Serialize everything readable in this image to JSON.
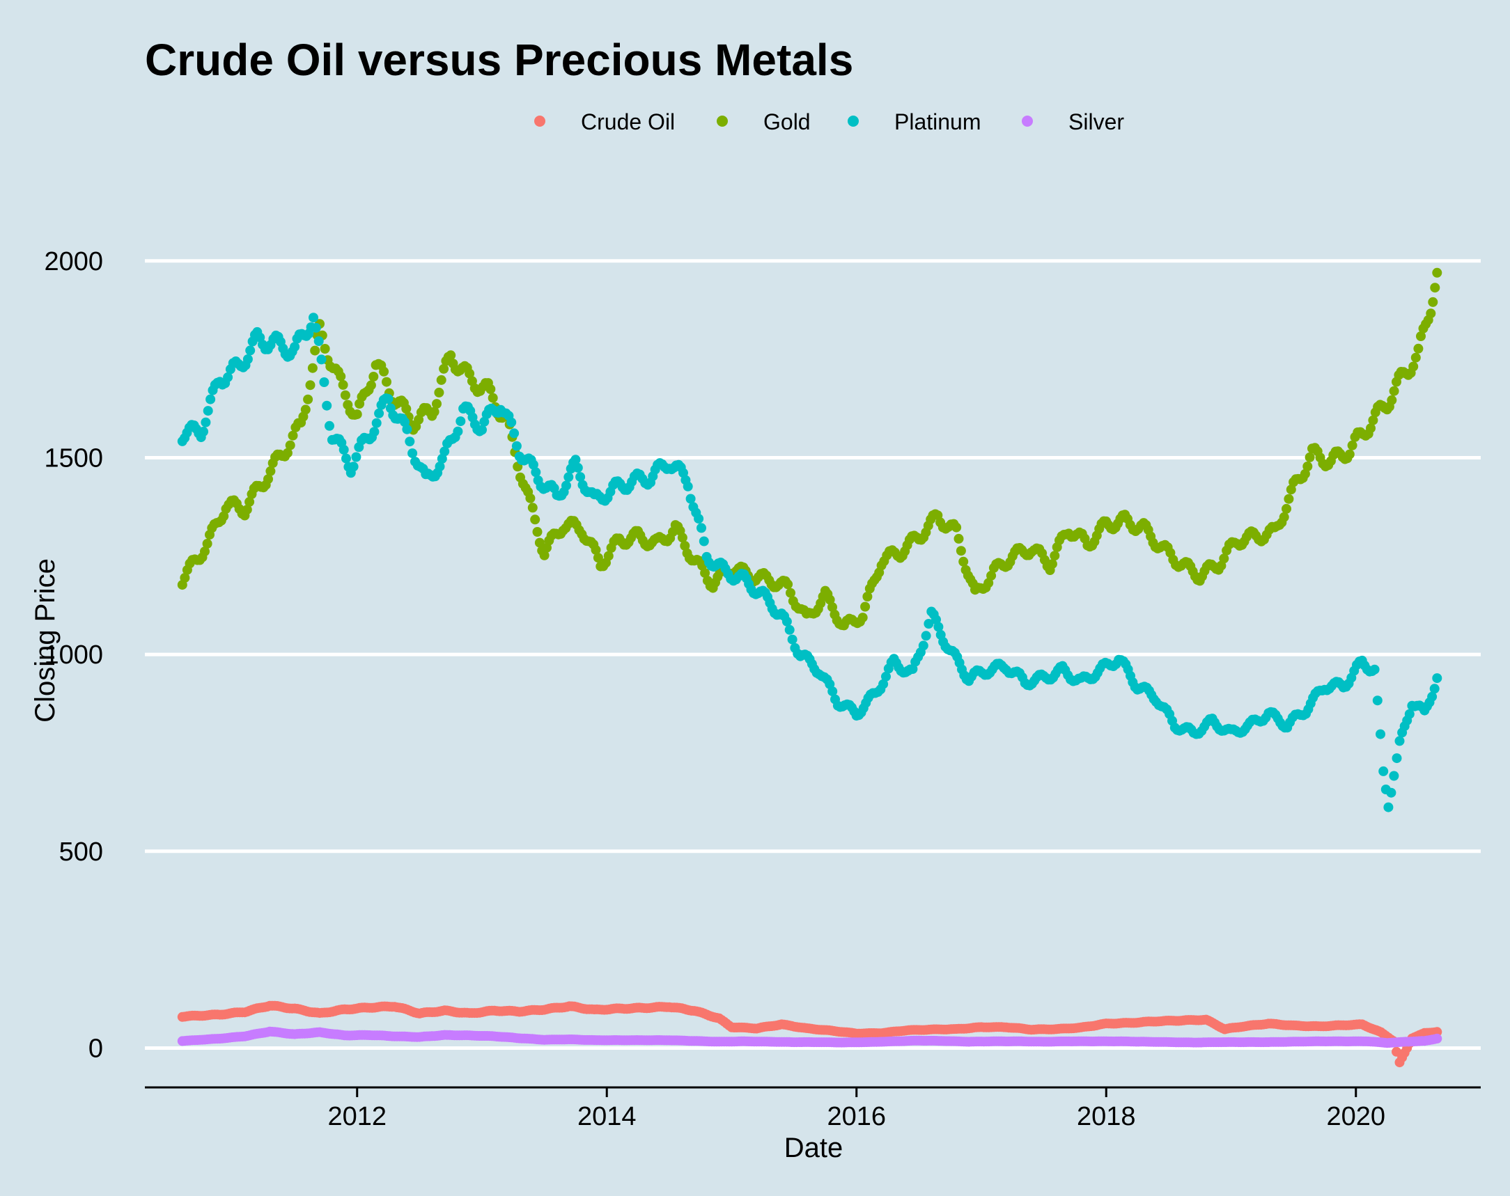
{
  "chart_data": {
    "type": "scatter",
    "title": "Crude Oil versus Precious Metals",
    "xlabel": "Date",
    "ylabel": "Closing Price",
    "xlim": [
      2010.3,
      2021.0
    ],
    "ylim": [
      -100,
      2150
    ],
    "x_ticks": [
      2012,
      2014,
      2016,
      2018,
      2020
    ],
    "x_tick_labels": [
      "2012",
      "2014",
      "2016",
      "2018",
      "2020"
    ],
    "y_ticks": [
      0,
      500,
      1000,
      1500,
      2000
    ],
    "y_tick_labels": [
      "0",
      "500",
      "1000",
      "1500",
      "2000"
    ],
    "grid": "horizontal",
    "legend": {
      "position": "top",
      "entries": [
        "Crude Oil",
        "Gold",
        "Platinum",
        "Silver"
      ]
    },
    "series": [
      {
        "name": "Crude Oil",
        "color": "#F8766D",
        "points": [
          [
            2010.6,
            80
          ],
          [
            2010.9,
            85
          ],
          [
            2011.1,
            92
          ],
          [
            2011.3,
            108
          ],
          [
            2011.5,
            100
          ],
          [
            2011.7,
            88
          ],
          [
            2011.9,
            98
          ],
          [
            2012.1,
            103
          ],
          [
            2012.3,
            106
          ],
          [
            2012.5,
            88
          ],
          [
            2012.7,
            95
          ],
          [
            2012.9,
            88
          ],
          [
            2013.1,
            95
          ],
          [
            2013.3,
            93
          ],
          [
            2013.5,
            98
          ],
          [
            2013.7,
            106
          ],
          [
            2013.9,
            97
          ],
          [
            2014.1,
            100
          ],
          [
            2014.3,
            102
          ],
          [
            2014.5,
            105
          ],
          [
            2014.7,
            95
          ],
          [
            2014.9,
            75
          ],
          [
            2015.0,
            53
          ],
          [
            2015.2,
            50
          ],
          [
            2015.4,
            60
          ],
          [
            2015.6,
            50
          ],
          [
            2015.8,
            44
          ],
          [
            2016.0,
            37
          ],
          [
            2016.2,
            38
          ],
          [
            2016.4,
            45
          ],
          [
            2016.6,
            47
          ],
          [
            2016.8,
            48
          ],
          [
            2017.0,
            53
          ],
          [
            2017.2,
            53
          ],
          [
            2017.4,
            47
          ],
          [
            2017.6,
            48
          ],
          [
            2017.8,
            52
          ],
          [
            2018.0,
            62
          ],
          [
            2018.2,
            64
          ],
          [
            2018.4,
            68
          ],
          [
            2018.6,
            70
          ],
          [
            2018.8,
            72
          ],
          [
            2018.95,
            48
          ],
          [
            2019.1,
            55
          ],
          [
            2019.3,
            62
          ],
          [
            2019.5,
            57
          ],
          [
            2019.7,
            55
          ],
          [
            2019.9,
            58
          ],
          [
            2020.05,
            60
          ],
          [
            2020.2,
            40
          ],
          [
            2020.3,
            18
          ],
          [
            2020.35,
            -37
          ],
          [
            2020.45,
            25
          ],
          [
            2020.55,
            38
          ],
          [
            2020.65,
            41
          ]
        ]
      },
      {
        "name": "Gold",
        "color": "#7CAE00",
        "points": [
          [
            2010.6,
            1190
          ],
          [
            2010.8,
            1280
          ],
          [
            2010.95,
            1380
          ],
          [
            2011.1,
            1370
          ],
          [
            2011.25,
            1440
          ],
          [
            2011.4,
            1510
          ],
          [
            2011.55,
            1580
          ],
          [
            2011.7,
            1820
          ],
          [
            2011.85,
            1700
          ],
          [
            2012.0,
            1600
          ],
          [
            2012.15,
            1740
          ],
          [
            2012.3,
            1650
          ],
          [
            2012.45,
            1590
          ],
          [
            2012.6,
            1620
          ],
          [
            2012.75,
            1760
          ],
          [
            2012.9,
            1700
          ],
          [
            2013.05,
            1670
          ],
          [
            2013.2,
            1590
          ],
          [
            2013.35,
            1420
          ],
          [
            2013.5,
            1260
          ],
          [
            2013.65,
            1330
          ],
          [
            2013.8,
            1320
          ],
          [
            2013.95,
            1230
          ],
          [
            2014.1,
            1290
          ],
          [
            2014.25,
            1300
          ],
          [
            2014.4,
            1280
          ],
          [
            2014.55,
            1320
          ],
          [
            2014.7,
            1240
          ],
          [
            2014.85,
            1180
          ],
          [
            2015.0,
            1220
          ],
          [
            2015.15,
            1200
          ],
          [
            2015.3,
            1190
          ],
          [
            2015.45,
            1170
          ],
          [
            2015.6,
            1090
          ],
          [
            2015.75,
            1150
          ],
          [
            2015.9,
            1070
          ],
          [
            2016.05,
            1100
          ],
          [
            2016.2,
            1240
          ],
          [
            2016.35,
            1260
          ],
          [
            2016.5,
            1300
          ],
          [
            2016.65,
            1350
          ],
          [
            2016.8,
            1310
          ],
          [
            2016.95,
            1150
          ],
          [
            2017.1,
            1210
          ],
          [
            2017.25,
            1250
          ],
          [
            2017.4,
            1270
          ],
          [
            2017.55,
            1230
          ],
          [
            2017.7,
            1320
          ],
          [
            2017.85,
            1280
          ],
          [
            2018.0,
            1330
          ],
          [
            2018.15,
            1340
          ],
          [
            2018.3,
            1320
          ],
          [
            2018.45,
            1270
          ],
          [
            2018.6,
            1230
          ],
          [
            2018.75,
            1200
          ],
          [
            2018.9,
            1230
          ],
          [
            2019.05,
            1290
          ],
          [
            2019.2,
            1300
          ],
          [
            2019.35,
            1310
          ],
          [
            2019.5,
            1420
          ],
          [
            2019.65,
            1510
          ],
          [
            2019.8,
            1490
          ],
          [
            2019.95,
            1520
          ],
          [
            2020.1,
            1580
          ],
          [
            2020.25,
            1640
          ],
          [
            2020.4,
            1720
          ],
          [
            2020.5,
            1760
          ],
          [
            2020.6,
            1890
          ],
          [
            2020.65,
            1970
          ]
        ]
      },
      {
        "name": "Platinum",
        "color": "#00BFC4",
        "points": [
          [
            2010.6,
            1560
          ],
          [
            2010.75,
            1570
          ],
          [
            2010.9,
            1700
          ],
          [
            2011.05,
            1730
          ],
          [
            2011.2,
            1800
          ],
          [
            2011.35,
            1790
          ],
          [
            2011.5,
            1770
          ],
          [
            2011.65,
            1860
          ],
          [
            2011.8,
            1560
          ],
          [
            2011.95,
            1480
          ],
          [
            2012.1,
            1560
          ],
          [
            2012.25,
            1650
          ],
          [
            2012.4,
            1560
          ],
          [
            2012.55,
            1440
          ],
          [
            2012.7,
            1500
          ],
          [
            2012.85,
            1620
          ],
          [
            2013.0,
            1580
          ],
          [
            2013.15,
            1640
          ],
          [
            2013.3,
            1520
          ],
          [
            2013.45,
            1450
          ],
          [
            2013.6,
            1400
          ],
          [
            2013.75,
            1480
          ],
          [
            2013.9,
            1390
          ],
          [
            2014.05,
            1420
          ],
          [
            2014.2,
            1440
          ],
          [
            2014.35,
            1450
          ],
          [
            2014.5,
            1490
          ],
          [
            2014.65,
            1440
          ],
          [
            2014.8,
            1250
          ],
          [
            2014.95,
            1210
          ],
          [
            2015.1,
            1190
          ],
          [
            2015.25,
            1150
          ],
          [
            2015.4,
            1100
          ],
          [
            2015.55,
            1000
          ],
          [
            2015.7,
            960
          ],
          [
            2015.85,
            880
          ],
          [
            2016.0,
            850
          ],
          [
            2016.15,
            900
          ],
          [
            2016.3,
            980
          ],
          [
            2016.45,
            950
          ],
          [
            2016.6,
            1100
          ],
          [
            2016.75,
            1010
          ],
          [
            2016.9,
            940
          ],
          [
            2017.05,
            960
          ],
          [
            2017.2,
            970
          ],
          [
            2017.35,
            930
          ],
          [
            2017.5,
            940
          ],
          [
            2017.65,
            960
          ],
          [
            2017.8,
            930
          ],
          [
            2017.95,
            960
          ],
          [
            2018.1,
            990
          ],
          [
            2018.25,
            920
          ],
          [
            2018.4,
            890
          ],
          [
            2018.55,
            820
          ],
          [
            2018.7,
            800
          ],
          [
            2018.85,
            830
          ],
          [
            2019.0,
            800
          ],
          [
            2019.15,
            820
          ],
          [
            2019.3,
            850
          ],
          [
            2019.45,
            820
          ],
          [
            2019.6,
            860
          ],
          [
            2019.75,
            920
          ],
          [
            2019.9,
            920
          ],
          [
            2020.05,
            980
          ],
          [
            2020.15,
            960
          ],
          [
            2020.22,
            700
          ],
          [
            2020.26,
            620
          ],
          [
            2020.35,
            770
          ],
          [
            2020.45,
            880
          ],
          [
            2020.55,
            850
          ],
          [
            2020.65,
            940
          ]
        ]
      },
      {
        "name": "Silver",
        "color": "#C77CFF",
        "points": [
          [
            2010.6,
            18
          ],
          [
            2010.9,
            24
          ],
          [
            2011.1,
            30
          ],
          [
            2011.3,
            42
          ],
          [
            2011.5,
            35
          ],
          [
            2011.7,
            40
          ],
          [
            2011.9,
            32
          ],
          [
            2012.1,
            33
          ],
          [
            2012.3,
            30
          ],
          [
            2012.5,
            28
          ],
          [
            2012.7,
            33
          ],
          [
            2012.9,
            32
          ],
          [
            2013.1,
            30
          ],
          [
            2013.3,
            25
          ],
          [
            2013.5,
            21
          ],
          [
            2013.7,
            22
          ],
          [
            2013.9,
            20
          ],
          [
            2014.1,
            20
          ],
          [
            2014.3,
            20
          ],
          [
            2014.5,
            20
          ],
          [
            2014.7,
            18
          ],
          [
            2014.9,
            16
          ],
          [
            2015.1,
            17
          ],
          [
            2015.3,
            16
          ],
          [
            2015.5,
            15
          ],
          [
            2015.7,
            15
          ],
          [
            2015.9,
            14
          ],
          [
            2016.1,
            15
          ],
          [
            2016.3,
            17
          ],
          [
            2016.5,
            19
          ],
          [
            2016.7,
            18
          ],
          [
            2016.9,
            16
          ],
          [
            2017.1,
            17
          ],
          [
            2017.3,
            17
          ],
          [
            2017.5,
            16
          ],
          [
            2017.7,
            17
          ],
          [
            2017.9,
            17
          ],
          [
            2018.1,
            17
          ],
          [
            2018.3,
            16
          ],
          [
            2018.5,
            15
          ],
          [
            2018.7,
            14
          ],
          [
            2018.9,
            15
          ],
          [
            2019.1,
            15
          ],
          [
            2019.3,
            15
          ],
          [
            2019.5,
            16
          ],
          [
            2019.7,
            17
          ],
          [
            2019.9,
            17
          ],
          [
            2020.1,
            17
          ],
          [
            2020.25,
            13
          ],
          [
            2020.4,
            16
          ],
          [
            2020.55,
            18
          ],
          [
            2020.65,
            24
          ]
        ]
      }
    ]
  }
}
